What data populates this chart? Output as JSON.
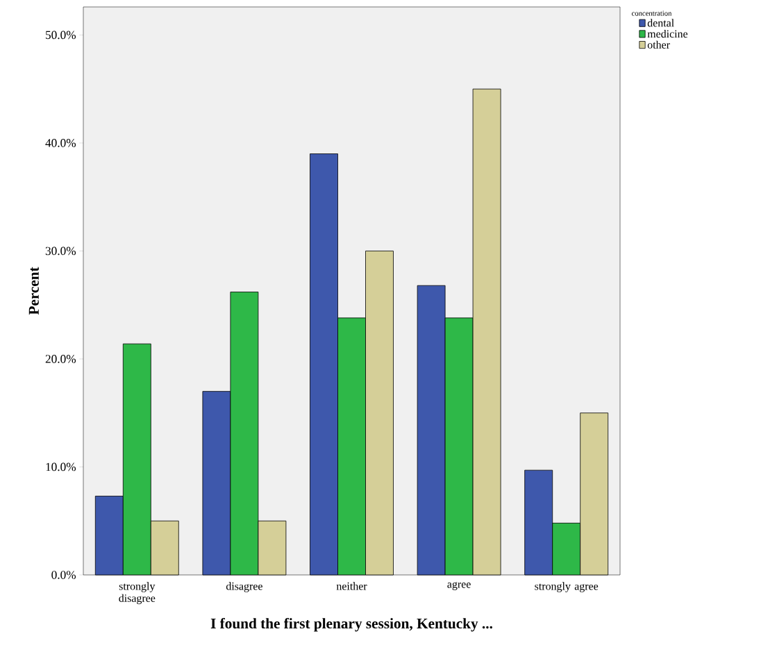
{
  "chart_data": {
    "type": "bar",
    "xlabel": "I found the first plenary session, Kentucky ...",
    "ylabel": "Percent",
    "legend_title": "concentration",
    "legend": "top right",
    "categories": [
      "strongly disagree",
      "disagree",
      "neither",
      "agree",
      "strongly agree"
    ],
    "series": [
      {
        "name": "dental",
        "color": "#3e58ac",
        "values": [
          7.3,
          17.0,
          39.0,
          26.8,
          9.7
        ]
      },
      {
        "name": "medicine",
        "color": "#2eb848",
        "values": [
          21.4,
          26.2,
          23.8,
          23.8,
          4.8
        ]
      },
      {
        "name": "other",
        "color": "#d5cf98",
        "values": [
          5.0,
          5.0,
          30.0,
          45.0,
          15.0
        ]
      }
    ],
    "ylim": [
      0,
      52.6
    ],
    "yticks": [
      {
        "value": 0,
        "label": "0.0%"
      },
      {
        "value": 10,
        "label": "10.0%"
      },
      {
        "value": 20,
        "label": "20.0%"
      },
      {
        "value": 30,
        "label": "30.0%"
      },
      {
        "value": 40,
        "label": "40.0%"
      },
      {
        "value": 50,
        "label": "50.0%"
      }
    ],
    "grid": false
  }
}
